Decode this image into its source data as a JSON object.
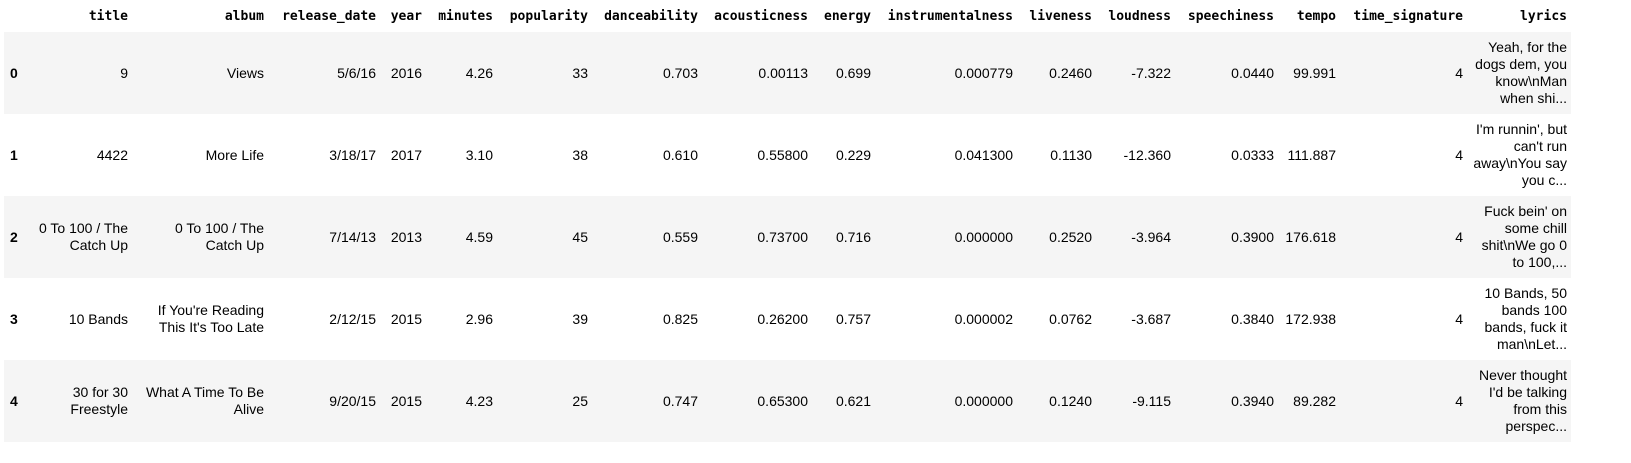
{
  "table": {
    "index_header": "",
    "columns": [
      "title",
      "album",
      "release_date",
      "year",
      "minutes",
      "popularity",
      "danceability",
      "acousticness",
      "energy",
      "instrumentalness",
      "liveness",
      "loudness",
      "speechiness",
      "tempo",
      "time_signature",
      "lyrics"
    ],
    "rows": [
      {
        "index": "0",
        "cells": [
          "9",
          "Views",
          "5/6/16",
          "2016",
          "4.26",
          "33",
          "0.703",
          "0.00113",
          "0.699",
          "0.000779",
          "0.2460",
          "-7.322",
          "0.0440",
          "99.991",
          "4",
          "Yeah, for the dogs dem, you know\\nMan when shi..."
        ]
      },
      {
        "index": "1",
        "cells": [
          "4422",
          "More Life",
          "3/18/17",
          "2017",
          "3.10",
          "38",
          "0.610",
          "0.55800",
          "0.229",
          "0.041300",
          "0.1130",
          "-12.360",
          "0.0333",
          "111.887",
          "4",
          "I'm runnin', but can't run away\\nYou say you c..."
        ]
      },
      {
        "index": "2",
        "cells": [
          "0 To 100 / The Catch Up",
          "0 To 100 / The Catch Up",
          "7/14/13",
          "2013",
          "4.59",
          "45",
          "0.559",
          "0.73700",
          "0.716",
          "0.000000",
          "0.2520",
          "-3.964",
          "0.3900",
          "176.618",
          "4",
          "Fuck bein' on some chill shit\\nWe go 0 to 100,..."
        ]
      },
      {
        "index": "3",
        "cells": [
          "10 Bands",
          "If You're Reading This It's Too Late",
          "2/12/15",
          "2015",
          "2.96",
          "39",
          "0.825",
          "0.26200",
          "0.757",
          "0.000002",
          "0.0762",
          "-3.687",
          "0.3840",
          "172.938",
          "4",
          "10 Bands, 50 bands 100 bands, fuck it man\\nLet..."
        ]
      },
      {
        "index": "4",
        "cells": [
          "30 for 30 Freestyle",
          "What A Time To Be Alive",
          "9/20/15",
          "2015",
          "4.23",
          "25",
          "0.747",
          "0.65300",
          "0.621",
          "0.000000",
          "0.1240",
          "-9.115",
          "0.3940",
          "89.282",
          "4",
          "Never thought I'd be talking from this perspec..."
        ]
      }
    ]
  }
}
